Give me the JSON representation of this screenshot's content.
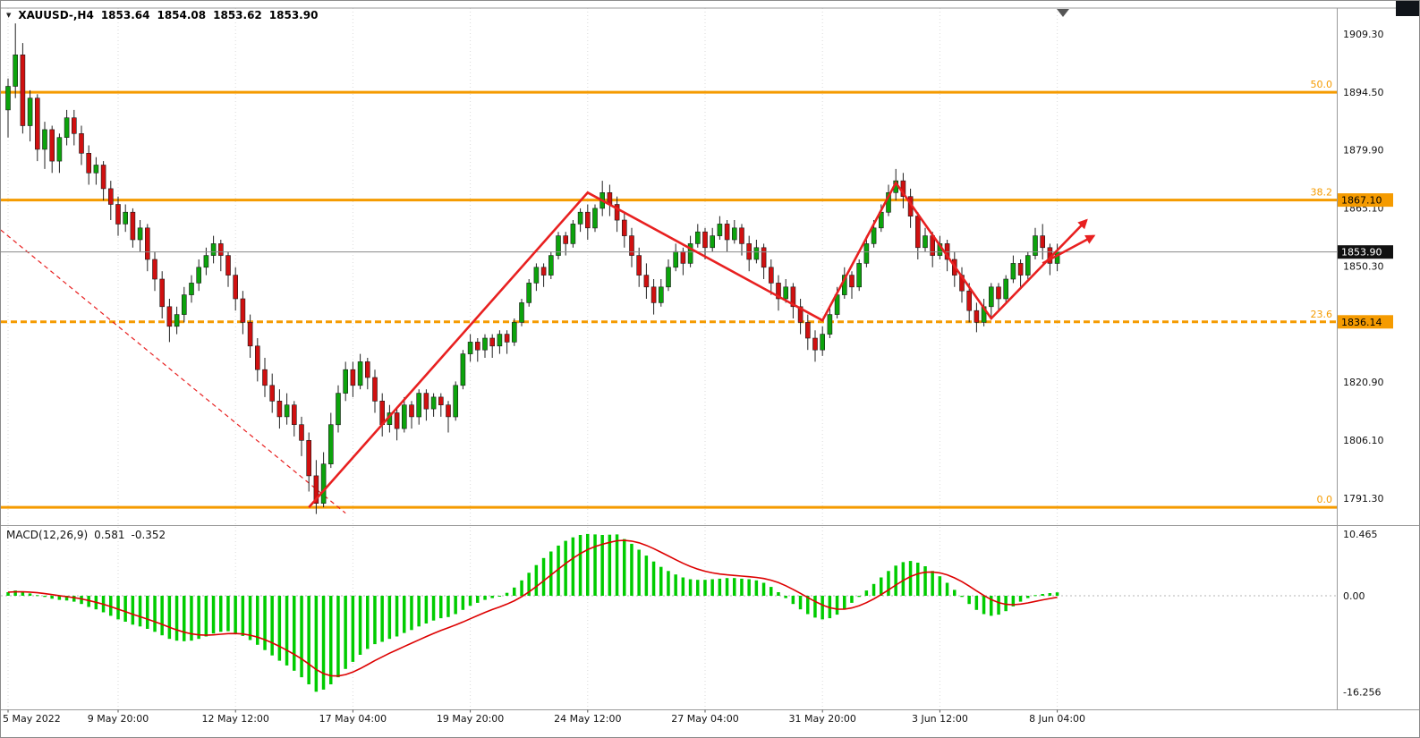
{
  "header": {
    "symbol_period": "XAUUSD-,H4",
    "open": "1853.64",
    "high": "1854.08",
    "low": "1853.62",
    "close": "1853.90"
  },
  "macd_panel": {
    "name": "MACD(12,26,9)",
    "macd_value": "0.581",
    "signal_value": "-0.352"
  },
  "overlays": {
    "fibonacci": {
      "color": "#F59B00",
      "levels": [
        {
          "label": "50.0",
          "price": 1894.5,
          "badge": null,
          "dashed": false
        },
        {
          "label": "38.2",
          "price": 1867.1,
          "badge": "1867.10",
          "dashed": false
        },
        {
          "label": "23.6",
          "price": 1836.14,
          "badge": "1836.14",
          "dashed": true
        },
        {
          "label": "0.0",
          "price": 1789.0,
          "badge": null,
          "dashed": false
        }
      ]
    },
    "current_price": {
      "label": "1853.90",
      "price": 1853.9
    },
    "trend_arrows": {
      "color": "#E82020",
      "polylines": [
        [
          [
            41,
            1789
          ],
          [
            79,
            1869
          ],
          [
            111,
            1836.5
          ],
          [
            121,
            1871.5
          ],
          [
            134,
            1837
          ],
          [
            147,
            1862
          ]
        ],
        [
          [
            141,
            1851
          ],
          [
            148,
            1858
          ]
        ]
      ]
    },
    "dashed_trendline": {
      "color": "#E82020",
      "from": [
        -1,
        1859.5
      ],
      "to": [
        46,
        1787.5
      ]
    },
    "shift_marker": true
  },
  "chart_data": [
    {
      "type": "candlestick",
      "symbol": "XAUUSD-",
      "timeframe": "H4",
      "ylim": [
        1784.7,
        1915.9
      ],
      "up_color": "#0CA30C",
      "down_color": "#D01010",
      "y_ticks": [
        {
          "v": 1909.3,
          "label": "1909.30"
        },
        {
          "v": 1894.5,
          "label": "1894.50"
        },
        {
          "v": 1879.9,
          "label": "1879.90"
        },
        {
          "v": 1865.1,
          "label": "1865.10"
        },
        {
          "v": 1850.3,
          "label": "1850.30"
        },
        {
          "v": 1835.5,
          "label": "1835.50"
        },
        {
          "v": 1820.9,
          "label": "1820.90"
        },
        {
          "v": 1806.1,
          "label": "1806.10"
        },
        {
          "v": 1791.3,
          "label": "1791.30"
        }
      ],
      "x_labels": [
        {
          "i": 0,
          "text": "5 May 2022"
        },
        {
          "i": 15,
          "text": "9 May 20:00"
        },
        {
          "i": 31,
          "text": "12 May 12:00"
        },
        {
          "i": 47,
          "text": "17 May 04:00"
        },
        {
          "i": 63,
          "text": "19 May 20:00"
        },
        {
          "i": 79,
          "text": "24 May 12:00"
        },
        {
          "i": 95,
          "text": "27 May 04:00"
        },
        {
          "i": 111,
          "text": "31 May 20:00"
        },
        {
          "i": 127,
          "text": "3 Jun 12:00"
        },
        {
          "i": 143,
          "text": "8 Jun 04:00"
        }
      ],
      "ohlc": [
        [
          1890,
          1898,
          1883,
          1896
        ],
        [
          1896,
          1912,
          1893,
          1904
        ],
        [
          1904,
          1907,
          1884,
          1886
        ],
        [
          1886,
          1895,
          1882,
          1893
        ],
        [
          1893,
          1894,
          1877,
          1880
        ],
        [
          1880,
          1887,
          1875,
          1885
        ],
        [
          1885,
          1886,
          1874,
          1877
        ],
        [
          1877,
          1884,
          1874,
          1883
        ],
        [
          1883,
          1890,
          1881,
          1888
        ],
        [
          1888,
          1890,
          1881,
          1884
        ],
        [
          1884,
          1886,
          1876,
          1879
        ],
        [
          1879,
          1881,
          1871,
          1874
        ],
        [
          1874,
          1878,
          1871,
          1876
        ],
        [
          1876,
          1877,
          1867,
          1870
        ],
        [
          1870,
          1872,
          1862,
          1866
        ],
        [
          1866,
          1868,
          1858,
          1861
        ],
        [
          1861,
          1866,
          1859,
          1864
        ],
        [
          1864,
          1865,
          1855,
          1857
        ],
        [
          1857,
          1862,
          1854,
          1860
        ],
        [
          1860,
          1861,
          1849,
          1852
        ],
        [
          1852,
          1854,
          1844,
          1847
        ],
        [
          1847,
          1849,
          1837,
          1840
        ],
        [
          1840,
          1842,
          1831,
          1835
        ],
        [
          1835,
          1840,
          1833,
          1838
        ],
        [
          1838,
          1845,
          1836,
          1843
        ],
        [
          1843,
          1848,
          1841,
          1846
        ],
        [
          1846,
          1852,
          1844,
          1850
        ],
        [
          1850,
          1855,
          1848,
          1853
        ],
        [
          1853,
          1858,
          1851,
          1856
        ],
        [
          1856,
          1857,
          1849,
          1853
        ],
        [
          1853,
          1854,
          1845,
          1848
        ],
        [
          1848,
          1850,
          1839,
          1842
        ],
        [
          1842,
          1844,
          1833,
          1836
        ],
        [
          1836,
          1838,
          1827,
          1830
        ],
        [
          1830,
          1832,
          1821,
          1824
        ],
        [
          1824,
          1827,
          1817,
          1820
        ],
        [
          1820,
          1823,
          1813,
          1816
        ],
        [
          1816,
          1819,
          1809,
          1812
        ],
        [
          1812,
          1818,
          1810,
          1815
        ],
        [
          1815,
          1816,
          1807,
          1810
        ],
        [
          1810,
          1812,
          1802,
          1806
        ],
        [
          1806,
          1808,
          1793,
          1797
        ],
        [
          1797,
          1801,
          1787.3,
          1790
        ],
        [
          1790,
          1803,
          1789,
          1800
        ],
        [
          1800,
          1813,
          1799,
          1810
        ],
        [
          1810,
          1820,
          1808,
          1818
        ],
        [
          1818,
          1826,
          1816,
          1824
        ],
        [
          1824,
          1826,
          1817,
          1820
        ],
        [
          1820,
          1828,
          1819,
          1826
        ],
        [
          1826,
          1827,
          1819,
          1822
        ],
        [
          1822,
          1824,
          1813,
          1816
        ],
        [
          1816,
          1818,
          1807,
          1810
        ],
        [
          1810,
          1815,
          1808,
          1813
        ],
        [
          1813,
          1814,
          1806,
          1809
        ],
        [
          1809,
          1817,
          1808,
          1815
        ],
        [
          1815,
          1816,
          1809,
          1812
        ],
        [
          1812,
          1819,
          1810,
          1818
        ],
        [
          1818,
          1819,
          1811,
          1814
        ],
        [
          1814,
          1818,
          1812,
          1817
        ],
        [
          1817,
          1818,
          1812,
          1815
        ],
        [
          1815,
          1816,
          1808,
          1812
        ],
        [
          1812,
          1821,
          1811,
          1820
        ],
        [
          1820,
          1829,
          1819,
          1828
        ],
        [
          1828,
          1833,
          1826,
          1831
        ],
        [
          1831,
          1832,
          1826,
          1829
        ],
        [
          1829,
          1833,
          1827,
          1832
        ],
        [
          1832,
          1833,
          1827,
          1830
        ],
        [
          1830,
          1834,
          1828,
          1833
        ],
        [
          1833,
          1834,
          1828,
          1831
        ],
        [
          1831,
          1837,
          1830,
          1836
        ],
        [
          1836,
          1842,
          1835,
          1841
        ],
        [
          1841,
          1847,
          1840,
          1846
        ],
        [
          1846,
          1851,
          1844,
          1850
        ],
        [
          1850,
          1851,
          1845,
          1848
        ],
        [
          1848,
          1854,
          1847,
          1853
        ],
        [
          1853,
          1859,
          1852,
          1858
        ],
        [
          1858,
          1859,
          1853,
          1856
        ],
        [
          1856,
          1862,
          1855,
          1861
        ],
        [
          1861,
          1865,
          1859,
          1864
        ],
        [
          1864,
          1866,
          1857,
          1860
        ],
        [
          1860,
          1866,
          1859,
          1865
        ],
        [
          1865,
          1872,
          1863,
          1869
        ],
        [
          1869,
          1871,
          1863,
          1866
        ],
        [
          1866,
          1868,
          1859,
          1862
        ],
        [
          1862,
          1864,
          1855,
          1858
        ],
        [
          1858,
          1860,
          1850,
          1853
        ],
        [
          1853,
          1855,
          1845,
          1848
        ],
        [
          1848,
          1851,
          1842,
          1845
        ],
        [
          1845,
          1847,
          1838,
          1841
        ],
        [
          1841,
          1847,
          1840,
          1845
        ],
        [
          1845,
          1852,
          1844,
          1850
        ],
        [
          1850,
          1856,
          1849,
          1854
        ],
        [
          1854,
          1855,
          1848,
          1851
        ],
        [
          1851,
          1858,
          1850,
          1856
        ],
        [
          1856,
          1861,
          1855,
          1859
        ],
        [
          1859,
          1860,
          1852,
          1855
        ],
        [
          1855,
          1860,
          1854,
          1858
        ],
        [
          1858,
          1863,
          1857,
          1861
        ],
        [
          1861,
          1862,
          1854,
          1857
        ],
        [
          1857,
          1862,
          1856,
          1860
        ],
        [
          1860,
          1861,
          1853,
          1856
        ],
        [
          1856,
          1858,
          1849,
          1852
        ],
        [
          1852,
          1857,
          1851,
          1855
        ],
        [
          1855,
          1856,
          1847,
          1850
        ],
        [
          1850,
          1852,
          1843,
          1846
        ],
        [
          1846,
          1848,
          1839,
          1842
        ],
        [
          1842,
          1847,
          1841,
          1845
        ],
        [
          1845,
          1846,
          1837,
          1840
        ],
        [
          1840,
          1842,
          1833,
          1836
        ],
        [
          1836,
          1838,
          1829,
          1832
        ],
        [
          1832,
          1834,
          1826,
          1829
        ],
        [
          1829,
          1835,
          1827.5,
          1833
        ],
        [
          1833,
          1840,
          1832,
          1838
        ],
        [
          1838,
          1845,
          1837,
          1843
        ],
        [
          1843,
          1850,
          1842,
          1848
        ],
        [
          1848,
          1849,
          1842,
          1845
        ],
        [
          1845,
          1852,
          1844,
          1851
        ],
        [
          1851,
          1858,
          1850,
          1856
        ],
        [
          1856,
          1862,
          1855,
          1860
        ],
        [
          1860,
          1866,
          1859,
          1864
        ],
        [
          1864,
          1871,
          1863,
          1869
        ],
        [
          1869,
          1875,
          1867,
          1872
        ],
        [
          1872,
          1874,
          1865,
          1868
        ],
        [
          1868,
          1870,
          1860,
          1863
        ],
        [
          1863,
          1864,
          1852,
          1855
        ],
        [
          1855,
          1860,
          1854,
          1858
        ],
        [
          1858,
          1859,
          1850,
          1853
        ],
        [
          1853,
          1858,
          1852,
          1856
        ],
        [
          1856,
          1857,
          1849,
          1852
        ],
        [
          1852,
          1854,
          1845,
          1848
        ],
        [
          1848,
          1850,
          1841,
          1844
        ],
        [
          1844,
          1846,
          1836,
          1839
        ],
        [
          1839,
          1841,
          1833.5,
          1836
        ],
        [
          1836,
          1842,
          1835,
          1840
        ],
        [
          1840,
          1846,
          1837,
          1845
        ],
        [
          1845,
          1846,
          1839,
          1842
        ],
        [
          1842,
          1848,
          1841,
          1847
        ],
        [
          1847,
          1853,
          1846,
          1851
        ],
        [
          1851,
          1852,
          1845,
          1848
        ],
        [
          1848,
          1854,
          1847,
          1853
        ],
        [
          1853,
          1860,
          1852,
          1858
        ],
        [
          1858,
          1861,
          1852,
          1855
        ],
        [
          1855,
          1856,
          1848,
          1851
        ],
        [
          1851,
          1856,
          1849,
          1853.9
        ]
      ]
    },
    {
      "type": "bar",
      "name": "MACD(12,26,9)",
      "histogram_color": "#00CC00",
      "signal_color": "#DD0000",
      "ylim": [
        -19,
        11.7
      ],
      "y_ticks": [
        {
          "v": 10.465,
          "label": "10.465"
        },
        {
          "v": 0,
          "label": "0.00"
        },
        {
          "v": -16.256,
          "label": "-16.256"
        }
      ],
      "current_values": {
        "macd": 0.581,
        "signal": -0.352
      },
      "values": [
        0.6,
        0.9,
        0.7,
        0.4,
        0.1,
        -0.2,
        -0.5,
        -0.7,
        -0.8,
        -1.0,
        -1.4,
        -1.9,
        -2.3,
        -2.8,
        -3.4,
        -4.0,
        -4.4,
        -4.9,
        -5.2,
        -5.6,
        -6.1,
        -6.7,
        -7.3,
        -7.6,
        -7.7,
        -7.6,
        -7.3,
        -6.9,
        -6.4,
        -6.1,
        -6.0,
        -6.3,
        -6.8,
        -7.5,
        -8.3,
        -9.2,
        -10.1,
        -11.0,
        -11.8,
        -12.7,
        -13.8,
        -15.0,
        -16.26,
        -15.9,
        -15.0,
        -13.8,
        -12.4,
        -11.2,
        -10.0,
        -9.0,
        -8.2,
        -7.8,
        -7.3,
        -6.9,
        -6.3,
        -5.8,
        -5.2,
        -4.7,
        -4.2,
        -3.8,
        -3.6,
        -3.1,
        -2.4,
        -1.7,
        -1.2,
        -0.7,
        -0.4,
        -0.1,
        0.5,
        1.4,
        2.6,
        3.9,
        5.2,
        6.4,
        7.5,
        8.5,
        9.3,
        9.9,
        10.3,
        10.465,
        10.4,
        10.3,
        10.35,
        10.4,
        9.6,
        8.8,
        7.8,
        6.8,
        5.8,
        4.9,
        4.2,
        3.6,
        3.1,
        2.8,
        2.7,
        2.7,
        2.8,
        2.9,
        3.0,
        3.0,
        2.9,
        2.8,
        2.6,
        2.2,
        1.5,
        0.6,
        -0.4,
        -1.4,
        -2.3,
        -3.1,
        -3.7,
        -4.0,
        -3.8,
        -3.2,
        -2.3,
        -1.2,
        -0.2,
        0.9,
        2.0,
        3.1,
        4.2,
        5.1,
        5.7,
        5.9,
        5.6,
        5.0,
        4.2,
        3.3,
        2.2,
        1.0,
        -0.2,
        -1.4,
        -2.4,
        -3.1,
        -3.4,
        -3.2,
        -2.6,
        -1.8,
        -1.0,
        -0.4,
        0.1,
        0.3,
        0.45,
        0.581
      ]
    }
  ]
}
